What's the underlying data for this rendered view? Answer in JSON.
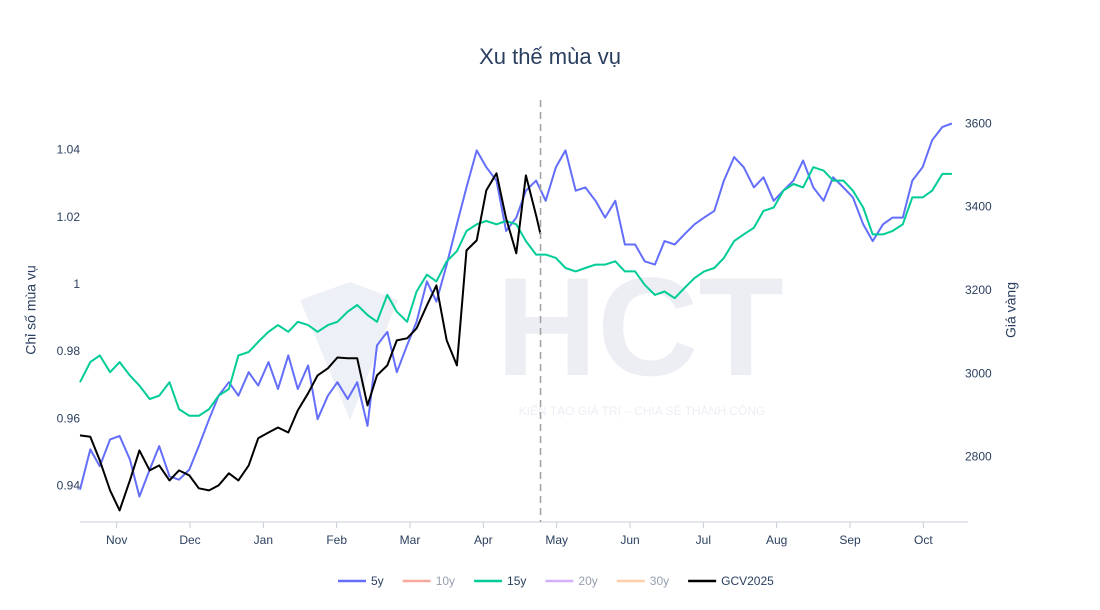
{
  "chart_data": {
    "type": "line",
    "title": "Xu thế mùa vụ",
    "ylabel": "Chỉ số mùa vụ",
    "y2label": "Giá vàng",
    "watermark": {
      "text": "HCT",
      "slogan": "KIẾN TẠO GIÁ TRỊ – CHIA SẺ THÀNH CÔNG"
    },
    "xlim": [
      0,
      12
    ],
    "xticks": [
      {
        "value": 0.5,
        "label": "Nov"
      },
      {
        "value": 1.5,
        "label": "Dec"
      },
      {
        "value": 2.5,
        "label": "Jan"
      },
      {
        "value": 3.5,
        "label": "Feb"
      },
      {
        "value": 4.5,
        "label": "Mar"
      },
      {
        "value": 5.5,
        "label": "Apr"
      },
      {
        "value": 6.5,
        "label": "May"
      },
      {
        "value": 7.5,
        "label": "Jun"
      },
      {
        "value": 8.5,
        "label": "Jul"
      },
      {
        "value": 9.5,
        "label": "Aug"
      },
      {
        "value": 10.5,
        "label": "Sep"
      },
      {
        "value": 11.5,
        "label": "Oct"
      }
    ],
    "ylim": [
      0.93,
      1.055
    ],
    "yticks": [
      0.94,
      0.96,
      0.98,
      1,
      1.02,
      1.04
    ],
    "y2lim": [
      2650,
      3658
    ],
    "y2ticks": [
      2800,
      3000,
      3200,
      3400,
      3600
    ],
    "grid": false,
    "legend": "bottom",
    "series": [
      {
        "name": "5y",
        "color": "#636efa",
        "visible": true,
        "x": [
          0,
          0.14,
          0.27,
          0.41,
          0.54,
          0.68,
          0.81,
          0.95,
          1.08,
          1.22,
          1.35,
          1.49,
          1.62,
          1.76,
          1.89,
          2.03,
          2.16,
          2.3,
          2.43,
          2.57,
          2.7,
          2.84,
          2.97,
          3.11,
          3.24,
          3.38,
          3.51,
          3.65,
          3.78,
          3.92,
          4.05,
          4.19,
          4.32,
          4.46,
          4.59,
          4.73,
          4.86,
          5,
          5.14,
          5.27,
          5.41,
          5.54,
          5.68,
          5.81,
          5.95,
          6.08,
          6.22,
          6.35,
          6.49,
          6.62,
          6.76,
          6.89,
          7.03,
          7.16,
          7.3,
          7.43,
          7.57,
          7.7,
          7.84,
          7.97,
          8.11,
          8.24,
          8.38,
          8.51,
          8.65,
          8.78,
          8.92,
          9.05,
          9.19,
          9.32,
          9.46,
          9.59,
          9.73,
          9.86,
          10,
          10.14,
          10.27,
          10.41,
          10.54,
          10.68,
          10.81,
          10.95,
          11.08,
          11.22,
          11.35,
          11.49,
          11.62,
          11.76,
          11.89
        ],
        "values": [
          0.939,
          0.951,
          0.946,
          0.954,
          0.955,
          0.948,
          0.937,
          0.945,
          0.952,
          0.943,
          0.942,
          0.945,
          0.952,
          0.96,
          0.967,
          0.971,
          0.967,
          0.974,
          0.97,
          0.977,
          0.969,
          0.979,
          0.969,
          0.976,
          0.96,
          0.967,
          0.971,
          0.966,
          0.971,
          0.958,
          0.982,
          0.986,
          0.974,
          0.982,
          0.989,
          1.001,
          0.995,
          1.006,
          1.018,
          1.029,
          1.04,
          1.035,
          1.031,
          1.016,
          1.02,
          1.028,
          1.031,
          1.025,
          1.035,
          1.04,
          1.028,
          1.029,
          1.025,
          1.02,
          1.025,
          1.012,
          1.012,
          1.007,
          1.006,
          1.013,
          1.012,
          1.015,
          1.018,
          1.02,
          1.022,
          1.031,
          1.038,
          1.035,
          1.029,
          1.032,
          1.025,
          1.028,
          1.031,
          1.037,
          1.029,
          1.025,
          1.032,
          1.029,
          1.026,
          1.018,
          1.013,
          1.018,
          1.02,
          1.02,
          1.031,
          1.035,
          1.043,
          1.047,
          1.048
        ]
      },
      {
        "name": "10y",
        "color": "#ef553b",
        "visible": false
      },
      {
        "name": "15y",
        "color": "#00cc96",
        "visible": true,
        "x": [
          0,
          0.14,
          0.27,
          0.41,
          0.54,
          0.68,
          0.81,
          0.95,
          1.08,
          1.22,
          1.35,
          1.49,
          1.62,
          1.76,
          1.89,
          2.03,
          2.16,
          2.3,
          2.43,
          2.57,
          2.7,
          2.84,
          2.97,
          3.11,
          3.24,
          3.38,
          3.51,
          3.65,
          3.78,
          3.92,
          4.05,
          4.19,
          4.32,
          4.46,
          4.59,
          4.73,
          4.86,
          5,
          5.14,
          5.27,
          5.41,
          5.54,
          5.68,
          5.81,
          5.95,
          6.08,
          6.22,
          6.35,
          6.49,
          6.62,
          6.76,
          6.89,
          7.03,
          7.16,
          7.3,
          7.43,
          7.57,
          7.7,
          7.84,
          7.97,
          8.11,
          8.24,
          8.38,
          8.51,
          8.65,
          8.78,
          8.92,
          9.05,
          9.19,
          9.32,
          9.46,
          9.59,
          9.73,
          9.86,
          10,
          10.14,
          10.27,
          10.41,
          10.54,
          10.68,
          10.81,
          10.95,
          11.08,
          11.22,
          11.35,
          11.49,
          11.62,
          11.76,
          11.89
        ],
        "values": [
          0.971,
          0.977,
          0.979,
          0.974,
          0.977,
          0.973,
          0.97,
          0.966,
          0.967,
          0.971,
          0.963,
          0.961,
          0.961,
          0.963,
          0.967,
          0.969,
          0.979,
          0.98,
          0.983,
          0.986,
          0.988,
          0.986,
          0.989,
          0.988,
          0.986,
          0.988,
          0.989,
          0.992,
          0.994,
          0.991,
          0.989,
          0.997,
          0.992,
          0.989,
          0.998,
          1.003,
          1.001,
          1.007,
          1.01,
          1.016,
          1.018,
          1.019,
          1.018,
          1.019,
          1.018,
          1.013,
          1.009,
          1.009,
          1.008,
          1.005,
          1.004,
          1.005,
          1.006,
          1.006,
          1.007,
          1.004,
          1.004,
          1,
          0.997,
          0.998,
          0.996,
          0.999,
          1.002,
          1.004,
          1.005,
          1.008,
          1.013,
          1.015,
          1.017,
          1.022,
          1.023,
          1.028,
          1.03,
          1.029,
          1.035,
          1.034,
          1.031,
          1.031,
          1.028,
          1.023,
          1.015,
          1.015,
          1.016,
          1.018,
          1.026,
          1.026,
          1.028,
          1.033,
          1.033
        ]
      },
      {
        "name": "20y",
        "color": "#ab63fa",
        "visible": false
      },
      {
        "name": "30y",
        "color": "#ffa15a",
        "visible": false
      },
      {
        "name": "GCV2025",
        "color": "#000000",
        "visible": true,
        "axis": "y2",
        "x": [
          0,
          0.14,
          0.27,
          0.41,
          0.54,
          0.68,
          0.81,
          0.95,
          1.08,
          1.22,
          1.35,
          1.49,
          1.62,
          1.76,
          1.89,
          2.03,
          2.16,
          2.3,
          2.43,
          2.57,
          2.7,
          2.84,
          2.97,
          3.11,
          3.24,
          3.38,
          3.51,
          3.65,
          3.78,
          3.92,
          4.05,
          4.19,
          4.32,
          4.46,
          4.59,
          4.73,
          4.86,
          5,
          5.14,
          5.27,
          5.41,
          5.54,
          5.68,
          5.81,
          5.95,
          6.08,
          6.22,
          6.28
        ],
        "values": [
          2853,
          2850,
          2793,
          2721,
          2673,
          2745,
          2817,
          2769,
          2781,
          2745,
          2769,
          2757,
          2726,
          2721,
          2733,
          2762,
          2745,
          2781,
          2846,
          2860,
          2872,
          2860,
          2913,
          2954,
          2997,
          3014,
          3040,
          3038,
          3038,
          2925,
          2997,
          3021,
          3081,
          3086,
          3110,
          3165,
          3213,
          3081,
          3021,
          3297,
          3321,
          3441,
          3482,
          3374,
          3290,
          3477,
          3381,
          3336
        ]
      }
    ]
  }
}
